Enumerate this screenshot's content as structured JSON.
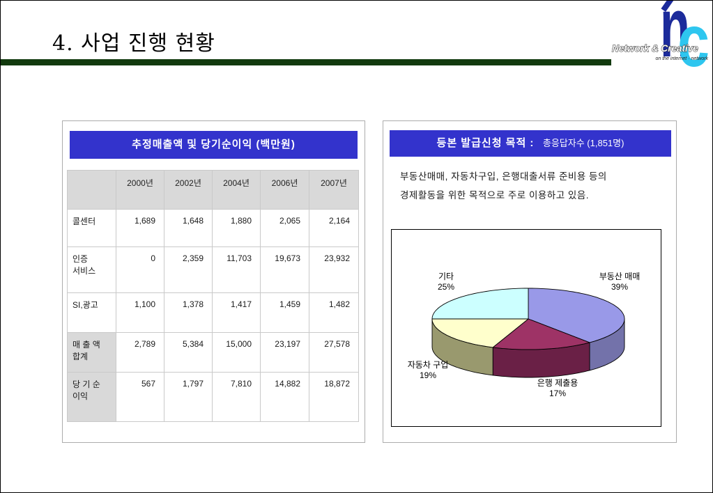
{
  "slide": {
    "title": "4. 사업 진행 현황",
    "accent_line_color": "#123A0E"
  },
  "logo": {
    "letter_n": "n",
    "letter_c": "c",
    "name": "Network & Creative",
    "tagline": "on the internet · network",
    "n_color": "#1C2B9B",
    "c_color": "#2EC6EF"
  },
  "left_panel": {
    "header": "추정매출액 및 당기순이익 (백만원)",
    "header_bg": "#3333CC",
    "table": {
      "columns": [
        "",
        "2000년",
        "2002년",
        "2004년",
        "2006년",
        "2007년"
      ],
      "rows": [
        {
          "label": "콜센터",
          "label_shaded": false,
          "values": [
            "1,689",
            "1,648",
            "1,880",
            "2,065",
            "2,164"
          ]
        },
        {
          "label": "인증\n서비스",
          "label_shaded": false,
          "values": [
            "0",
            "2,359",
            "11,703",
            "19,673",
            "23,932"
          ]
        },
        {
          "label": "SI,광고",
          "label_shaded": false,
          "values": [
            "1,100",
            "1,378",
            "1,417",
            "1,459",
            "1,482"
          ]
        },
        {
          "label": "매 출 액\n합계",
          "label_shaded": true,
          "values": [
            "2,789",
            "5,384",
            "15,000",
            "23,197",
            "27,578"
          ]
        },
        {
          "label": "당 기 순\n이익",
          "label_shaded": true,
          "values": [
            "567",
            "1,797",
            "7,810",
            "14,882",
            "18,872"
          ]
        }
      ]
    }
  },
  "right_panel": {
    "header_main": "등본 발급신청 목적 :",
    "header_sub": "총응답자수 (1,851명)",
    "header_bg": "#3333CC",
    "description_lines": [
      "부동산매매, 자동차구입, 은행대출서류 준비용 등의",
      "경제활동을 위한 목적으로 주로 이용하고 있음."
    ]
  },
  "chart_data": {
    "type": "pie",
    "style": "3d",
    "labels": [
      "부동산 매매",
      "은행 제출용",
      "자동차 구입",
      "기타"
    ],
    "values": [
      39,
      17,
      19,
      25
    ],
    "pct_labels": [
      "39%",
      "17%",
      "19%",
      "25%"
    ],
    "unit": "%",
    "colors": [
      "#9999E8",
      "#9E3366",
      "#FFFFCC",
      "#CCFFFF"
    ],
    "side_colors": [
      "#7372AA",
      "#6A2046",
      "#99996E",
      "#8FB2B2"
    ],
    "start_angle_deg": 0,
    "direction": "clockwise",
    "legend": "none"
  }
}
